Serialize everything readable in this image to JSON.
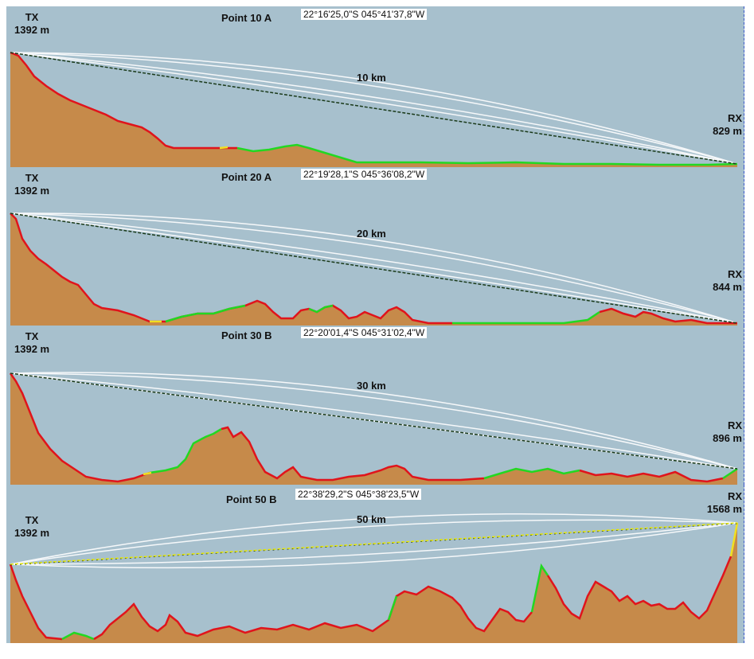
{
  "panels": [
    {
      "point": "Point 10 A",
      "coords": "22°16'25,0\"S 045°41'37,8\"W",
      "distance": "10 km",
      "tx": {
        "label": "TX",
        "height": "1392 m"
      },
      "rx": {
        "label": "RX",
        "height": "829 m"
      },
      "los_color": "#1a3a1a"
    },
    {
      "point": "Point 20 A",
      "coords": "22°19'28,1\"S 045°36'08,2\"W",
      "distance": "20 km",
      "tx": {
        "label": "TX",
        "height": "1392 m"
      },
      "rx": {
        "label": "RX",
        "height": "844 m"
      },
      "los_color": "#1a3a1a"
    },
    {
      "point": "Point 30 B",
      "coords": "22°20'01,4\"S 045°31'02,4\"W",
      "distance": "30 km",
      "tx": {
        "label": "TX",
        "height": "1392 m"
      },
      "rx": {
        "label": "RX",
        "height": "896 m"
      },
      "los_color": "#1a3a1a"
    },
    {
      "point": "Point 50 B",
      "coords": "22°38'29,2\"S 045°38'23,5\"W",
      "distance": "50 km",
      "tx": {
        "label": "TX",
        "height": "1392 m"
      },
      "rx": {
        "label": "RX",
        "height": "1568 m"
      },
      "los_color": "#e8e800"
    }
  ],
  "colors": {
    "sky": "#a7c0cd",
    "terrain": "#c68a4a",
    "terrain_dark": "#8a5a33",
    "profile_red": "#e0141c",
    "profile_green": "#22d822",
    "profile_yellow": "#f0e020",
    "fresnel": "#ffffff"
  }
}
